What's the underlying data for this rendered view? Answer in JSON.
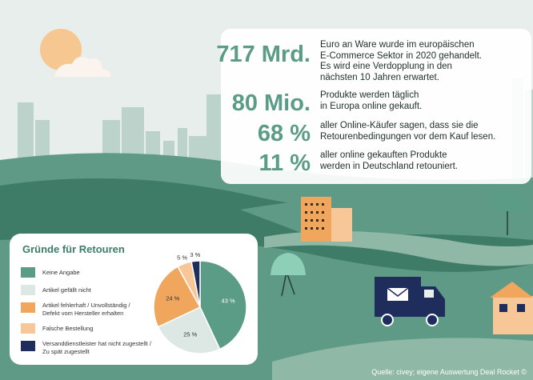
{
  "stats": [
    {
      "value": "717 Mrd.",
      "lines": [
        "Euro an Ware wurde im europäischen",
        "E-Commerce Sektor in 2020 gehandelt.",
        "Es wird eine Verdopplung in den",
        "nächsten 10 Jahren erwartet."
      ]
    },
    {
      "value": "80 Mio.",
      "lines": [
        "Produkte werden täglich",
        "in Europa online gekauft."
      ]
    },
    {
      "value": "68 %",
      "lines": [
        "aller Online-Käufer sagen, dass sie die",
        "Retourenbedingungen vor dem Kauf lesen."
      ]
    },
    {
      "value": "11 %",
      "lines": [
        "aller online gekauften Produkte",
        "werden in Deutschland retouniert."
      ]
    }
  ],
  "legend": {
    "title": "Gründe für Retouren",
    "items": [
      {
        "lines": [
          "Keine Angabe"
        ],
        "color": "#5b9c86"
      },
      {
        "lines": [
          "Artikel gefällt nicht"
        ],
        "color": "#dde8e4"
      },
      {
        "lines": [
          "Artikel fehlerhaft / Unvollständig /",
          "Defekt vom Hersteller erhalten"
        ],
        "color": "#f1a65e"
      },
      {
        "lines": [
          "Falsche Bestellung"
        ],
        "color": "#f7c798"
      },
      {
        "lines": [
          "Versanddienstleister hat nicht zugestellt /",
          "Zu spät zugestellt"
        ],
        "color": "#1f2d5c"
      }
    ]
  },
  "chart_data": {
    "type": "pie",
    "labels": [
      "Keine Angabe",
      "Artikel gefällt nicht",
      "Artikel fehlerhaft / Unvollständig / Defekt vom Hersteller erhalten",
      "Falsche Bestellung",
      "Versanddienstleister hat nicht zugestellt / Zu spät zugestellt"
    ],
    "values": [
      43,
      25,
      24,
      5,
      3
    ],
    "value_labels": [
      "43 %",
      "25 %",
      "24 %",
      "5 %",
      "3 %"
    ],
    "colors": [
      "#5b9c86",
      "#dde8e4",
      "#f1a65e",
      "#f7c798",
      "#1f2d5c"
    ],
    "legend": "left"
  },
  "source": "Quelle: civey; eigene Auswertung Deal Rocket ©",
  "palette": {
    "sky": "#e7eeec",
    "sun": "#f7c792",
    "city": "#bcd3cb",
    "hill_dark": "#3f7c68",
    "hill_mid": "#5e9a85",
    "road": "#8fb8a6",
    "accent": "#5b9c86"
  },
  "icons": [
    "sun-icon",
    "cloud-icon",
    "city-skyline",
    "house-icon",
    "tree-icon",
    "delivery-truck-icon",
    "envelope-icon"
  ]
}
